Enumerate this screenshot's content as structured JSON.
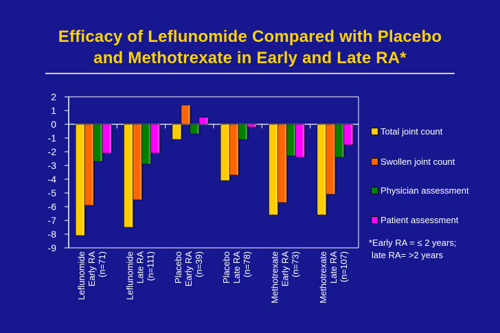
{
  "chart_data": {
    "type": "bar",
    "title": "Efficacy of Leflunomide Compared with Placebo and Methotrexate in Early and Late RA*",
    "ylim": [
      -9,
      2
    ],
    "yticks": [
      2,
      1,
      0,
      -1,
      -2,
      -3,
      -4,
      -5,
      -6,
      -7,
      -8,
      -9
    ],
    "grid": false,
    "legend_position": "right",
    "categories": [
      [
        "Leflunomide",
        "Early RA",
        "(n=71)"
      ],
      [
        "Leflunomide",
        "Late RA",
        "(n=111)"
      ],
      [
        "Placebo",
        "Early RA",
        "(n=39)"
      ],
      [
        "Placebo",
        "Late RA",
        "(n=78)"
      ],
      [
        "Methotrexate",
        "Early RA",
        "(n=73)"
      ],
      [
        "Methotrexate",
        "Late RA",
        "(n=107)"
      ]
    ],
    "series": [
      {
        "name": "Total joint count",
        "color": "#ffcc00",
        "values": [
          -8.1,
          -7.5,
          -1.1,
          -4.1,
          -6.6,
          -6.6
        ]
      },
      {
        "name": "Swollen joint count",
        "color": "#ff6600",
        "values": [
          -5.9,
          -5.5,
          1.4,
          -3.7,
          -5.7,
          -5.1
        ]
      },
      {
        "name": "Physician assessment",
        "color": "#008000",
        "values": [
          -2.7,
          -2.9,
          -0.7,
          -1.1,
          -2.3,
          -2.4
        ]
      },
      {
        "name": "Patient assessment",
        "color": "#ff00ff",
        "values": [
          -2.1,
          -2.1,
          0.5,
          -0.2,
          -2.4,
          -1.5
        ]
      }
    ]
  },
  "page": {
    "title_line1": "Efficacy of Leflunomide Compared with Placebo",
    "title_line2": "and Methotrexate in Early and Late RA*",
    "footnote_line1": "*Early RA = ≤ 2 years;",
    "footnote_line2": "late RA= >2 years"
  },
  "colors": {
    "background": "#17178f",
    "title": "#ffd200",
    "axis": "#ffffff"
  }
}
